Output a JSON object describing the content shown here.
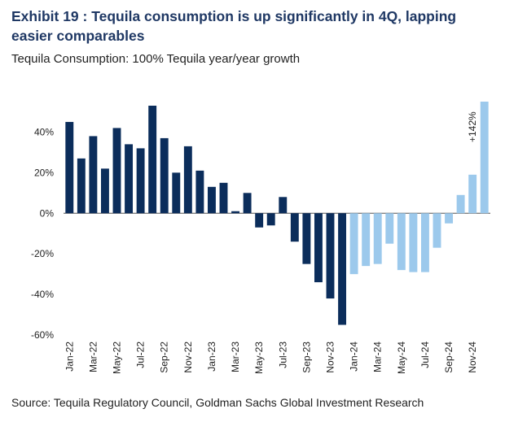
{
  "title": "Exhibit 19 : Tequila consumption is up significantly in 4Q, lapping easier comparables",
  "subtitle": "Tequila Consumption: 100% Tequila year/year growth",
  "source": "Source: Tequila Regulatory Council, Goldman Sachs Global Investment Research",
  "colors": {
    "actual": "#0b2d5b",
    "recent": "#9cc9ec"
  },
  "chart_data": {
    "type": "bar",
    "categories": [
      "Jan-22",
      "Feb-22",
      "Mar-22",
      "Apr-22",
      "May-22",
      "Jun-22",
      "Jul-22",
      "Aug-22",
      "Sep-22",
      "Oct-22",
      "Nov-22",
      "Dec-22",
      "Jan-23",
      "Feb-23",
      "Mar-23",
      "Apr-23",
      "May-23",
      "Jun-23",
      "Jul-23",
      "Aug-23",
      "Sep-23",
      "Oct-23",
      "Nov-23",
      "Dec-23",
      "Jan-24",
      "Feb-24",
      "Mar-24",
      "Apr-24",
      "May-24",
      "Jun-24",
      "Jul-24",
      "Aug-24",
      "Sep-24",
      "Oct-24",
      "Nov-24",
      "Dec-24"
    ],
    "x_tick_labels": [
      "Jan-22",
      "Mar-22",
      "May-22",
      "Jul-22",
      "Sep-22",
      "Nov-22",
      "Jan-23",
      "Mar-23",
      "May-23",
      "Jul-23",
      "Sep-23",
      "Nov-23",
      "Jan-24",
      "Mar-24",
      "May-24",
      "Jul-24",
      "Sep-24",
      "Nov-24"
    ],
    "values": [
      45,
      27,
      38,
      22,
      42,
      34,
      32,
      53,
      37,
      20,
      33,
      21,
      13,
      15,
      1,
      10,
      -7,
      -6,
      8,
      -14,
      -25,
      -34,
      -42,
      -55,
      -30,
      -26,
      -25,
      -15,
      -28,
      -29,
      -29,
      -17,
      -5,
      9,
      19,
      55
    ],
    "series_split_index": 24,
    "ylim": [
      -60,
      55
    ],
    "yticks": [
      -60,
      -40,
      -20,
      0,
      20,
      40
    ],
    "ytick_labels": [
      "-60%",
      "-40%",
      "-20%",
      "0%",
      "20%",
      "40%"
    ],
    "annotation": "+142%",
    "grid": false
  }
}
